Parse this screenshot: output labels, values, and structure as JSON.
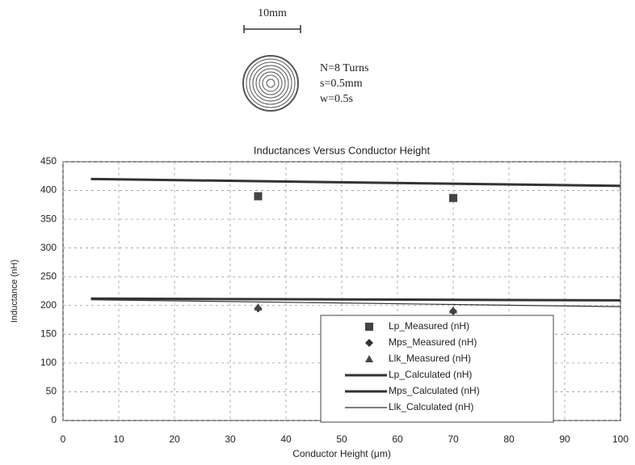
{
  "chart_data": {
    "type": "line",
    "title": "Inductances Versus Conductor Height",
    "xlabel": "Conductor Height (μm)",
    "ylabel": "Inductance (nH)",
    "annotations": [
      "10mm",
      "N=8 Turns",
      "s=0.5mm",
      "w=0.5s"
    ],
    "xlim": [
      0,
      100
    ],
    "xticks": [
      0,
      10,
      20,
      30,
      40,
      50,
      60,
      70,
      80,
      90,
      100
    ],
    "ylim": [
      0,
      450
    ],
    "yticks": [
      0,
      50,
      100,
      150,
      200,
      250,
      300,
      350,
      400,
      450
    ],
    "grid": true,
    "legend": "lower-right",
    "series": [
      {
        "name": "Lp_Measured (nH)",
        "color": "#444444",
        "mode": "markers",
        "marker": "square",
        "x": [
          35,
          70
        ],
        "values": [
          390,
          387
        ]
      },
      {
        "name": "Mps_Measured (nH)",
        "color": "#333333",
        "mode": "markers",
        "marker": "diamond",
        "x": [
          35,
          70
        ],
        "values": [
          195,
          190
        ]
      },
      {
        "name": "Llk_Measured (nH)",
        "color": "#444444",
        "mode": "markers",
        "marker": "triangle",
        "x": [
          35,
          70
        ],
        "values": [
          197,
          192
        ]
      },
      {
        "name": "Lp_Calculated (nH)",
        "color": "#333333",
        "mode": "line",
        "width": 3,
        "x": [
          5,
          100
        ],
        "values": [
          420,
          408
        ]
      },
      {
        "name": "Mps_Calculated (nH)",
        "color": "#333333",
        "mode": "line",
        "width": 3,
        "x": [
          5,
          100
        ],
        "values": [
          212,
          209
        ]
      },
      {
        "name": "Llk_Calculated (nH)",
        "color": "#333333",
        "mode": "line",
        "width": 1.2,
        "x": [
          5,
          100
        ],
        "values": [
          210,
          198
        ]
      }
    ]
  }
}
